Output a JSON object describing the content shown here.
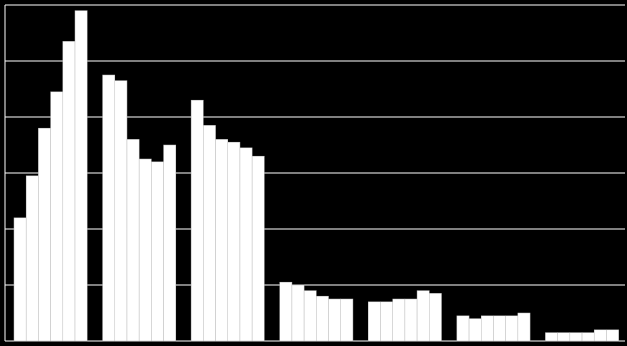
{
  "chart_data": {
    "type": "bar",
    "categories": [
      null,
      null,
      null,
      null,
      null,
      null,
      null
    ],
    "series": [
      {
        "color": "#ffffff",
        "values": [
          2.2,
          4.75,
          4.3,
          1.05,
          0.7,
          0.45,
          0.15
        ]
      },
      {
        "color": "#ffffff",
        "values": [
          2.95,
          4.65,
          3.85,
          1.0,
          0.7,
          0.4,
          0.15
        ]
      },
      {
        "color": "#ffffff",
        "values": [
          3.8,
          3.6,
          3.6,
          0.9,
          0.75,
          0.45,
          0.15
        ]
      },
      {
        "color": "#ffffff",
        "values": [
          4.45,
          3.25,
          3.55,
          0.8,
          0.75,
          0.45,
          0.15
        ]
      },
      {
        "color": "#ffffff",
        "values": [
          5.35,
          3.2,
          3.45,
          0.75,
          0.9,
          0.45,
          0.2
        ]
      },
      {
        "color": "#ffffff",
        "values": [
          5.9,
          3.5,
          3.3,
          0.75,
          0.85,
          0.5,
          0.2
        ]
      }
    ],
    "ylim": [
      0,
      6
    ],
    "yticks": [
      0,
      1,
      2,
      3,
      4,
      5,
      6
    ],
    "grid": true
  }
}
